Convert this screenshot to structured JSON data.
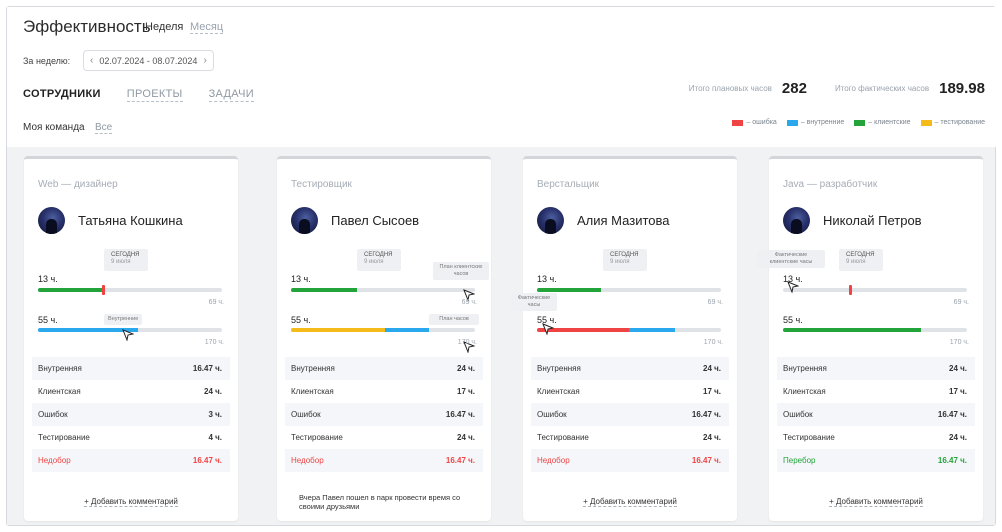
{
  "header": {
    "title": "Эффективность",
    "period_tabs": [
      {
        "label": "Неделя"
      },
      {
        "label": "Месяц"
      }
    ],
    "week_label": "За неделю:",
    "week_range": "02.07.2024 - 08.07.2024"
  },
  "nav_tabs": [
    {
      "label": "СОТРУДНИКИ"
    },
    {
      "label": "ПРОЕКТЫ"
    },
    {
      "label": "ЗАДАЧИ"
    }
  ],
  "filter": {
    "label": "Моя команда",
    "all_label": "Все"
  },
  "totals": {
    "planned_label": "Итого плановых часов",
    "planned_value": "282",
    "actual_label": "Итого фактических часов",
    "actual_value": "189.98"
  },
  "legend": [
    {
      "label": "– ошибка",
      "color": "#f04444"
    },
    {
      "label": "– внутренние",
      "color": "#2aa8ee"
    },
    {
      "label": "– клиентские",
      "color": "#23a43b"
    },
    {
      "label": "– тестирование",
      "color": "#f4bb1b"
    }
  ],
  "colors": {
    "error": "#f04444",
    "internal": "#2aa8ee",
    "client": "#23a43b",
    "testing": "#f4bb1b"
  },
  "cards": [
    {
      "role": "Web — дизайнер",
      "name": "Татьяна Кошкина",
      "today_label": "СЕГОДНЯ",
      "today_date": "9 июля",
      "bar1_label": "13 ч.",
      "bar1_plan": "69 ч.",
      "bar2_label": "55 ч.",
      "bar2_plan": "170 ч.",
      "hint": "Внутренние",
      "rows": [
        {
          "k": "Внутренняя",
          "v": "16.47 ч."
        },
        {
          "k": "Клиентская",
          "v": "24 ч."
        },
        {
          "k": "Ошибок",
          "v": "3 ч."
        },
        {
          "k": "Тестирование",
          "v": "4 ч."
        },
        {
          "k": "Недобор",
          "v": "16.47 ч."
        }
      ],
      "add_comment": "+ Добавить комментарий"
    },
    {
      "role": "Тестировщик",
      "name": "Павел Сысоев",
      "today_label": "СЕГОДНЯ",
      "today_date": "9 июля",
      "bar1_label": "13 ч.",
      "bar1_plan": "69 ч.",
      "bar2_label": "55 ч.",
      "bar2_plan": "170 ч.",
      "hint_plan_client": "План клиентских часов",
      "hint_plan": "План часов",
      "rows": [
        {
          "k": "Внутренняя",
          "v": "24 ч."
        },
        {
          "k": "Клиентская",
          "v": "17 ч."
        },
        {
          "k": "Ошибок",
          "v": "16.47 ч."
        },
        {
          "k": "Тестирование",
          "v": "24 ч."
        },
        {
          "k": "Недобор",
          "v": "16.47 ч."
        }
      ],
      "comment": "Вчера Павел пошел в парк провести время со своими друзьями"
    },
    {
      "role": "Верстальщик",
      "name": "Алия Мазитова",
      "today_label": "СЕГОДНЯ",
      "today_date": "9 июля",
      "bar1_label": "13 ч.",
      "bar1_plan": "69 ч.",
      "bar2_label": "55 ч.",
      "bar2_plan": "170 ч.",
      "hint_actual": "Фактические часы",
      "rows": [
        {
          "k": "Внутренняя",
          "v": "24 ч."
        },
        {
          "k": "Клиентская",
          "v": "17 ч."
        },
        {
          "k": "Ошибок",
          "v": "16.47 ч."
        },
        {
          "k": "Тестирование",
          "v": "24 ч."
        },
        {
          "k": "Недобор",
          "v": "16.47 ч."
        }
      ],
      "add_comment": "+ Добавить комментарий"
    },
    {
      "role": "Java — разработчик",
      "name": "Николай Петров",
      "today_label": "СЕГОДНЯ",
      "today_date": "9 июля",
      "bar1_label": "13 ч.",
      "bar1_plan": "69 ч.",
      "bar2_label": "55 ч.",
      "bar2_plan": "170 ч.",
      "hint_actual_client": "Фактические клиентские часы",
      "rows": [
        {
          "k": "Внутренняя",
          "v": "24 ч."
        },
        {
          "k": "Клиентская",
          "v": "17 ч."
        },
        {
          "k": "Ошибок",
          "v": "16.47 ч."
        },
        {
          "k": "Тестирование",
          "v": "24 ч."
        },
        {
          "k": "Перебор",
          "v": "16.47 ч."
        }
      ],
      "add_comment": "+ Добавить комментарий"
    }
  ]
}
